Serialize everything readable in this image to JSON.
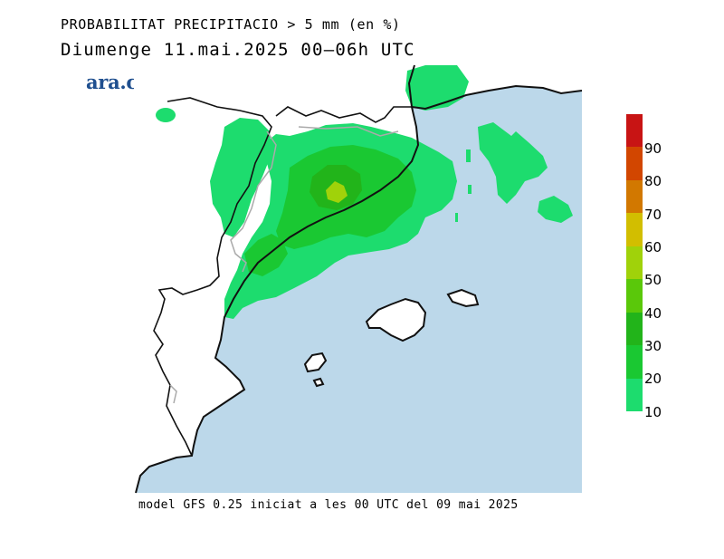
{
  "header": {
    "title": "PROBABILITAT PRECIPITACIO > 5 mm (en %)",
    "subtitle": "Diumenge  11.mai.2025 00–06h UTC"
  },
  "logo": {
    "text": "ara.cat",
    "color": "#1f4f8f"
  },
  "footer": {
    "text": "model GFS 0.25 iniciat a les 00 UTC del 09 mai 2025"
  },
  "map": {
    "sea_color": "#bcd8ea",
    "land_color": "#ffffff",
    "coast_color": "#111111",
    "border_color": "#aaaaaa"
  },
  "colorbar": {
    "ticks": [
      "10",
      "20",
      "30",
      "40",
      "50",
      "60",
      "70",
      "80",
      "90"
    ],
    "colors": [
      "#1ddc6e",
      "#1ac832",
      "#22b41a",
      "#5ac80a",
      "#a0d20a",
      "#d2be00",
      "#d27800",
      "#d24600",
      "#c81414"
    ]
  }
}
